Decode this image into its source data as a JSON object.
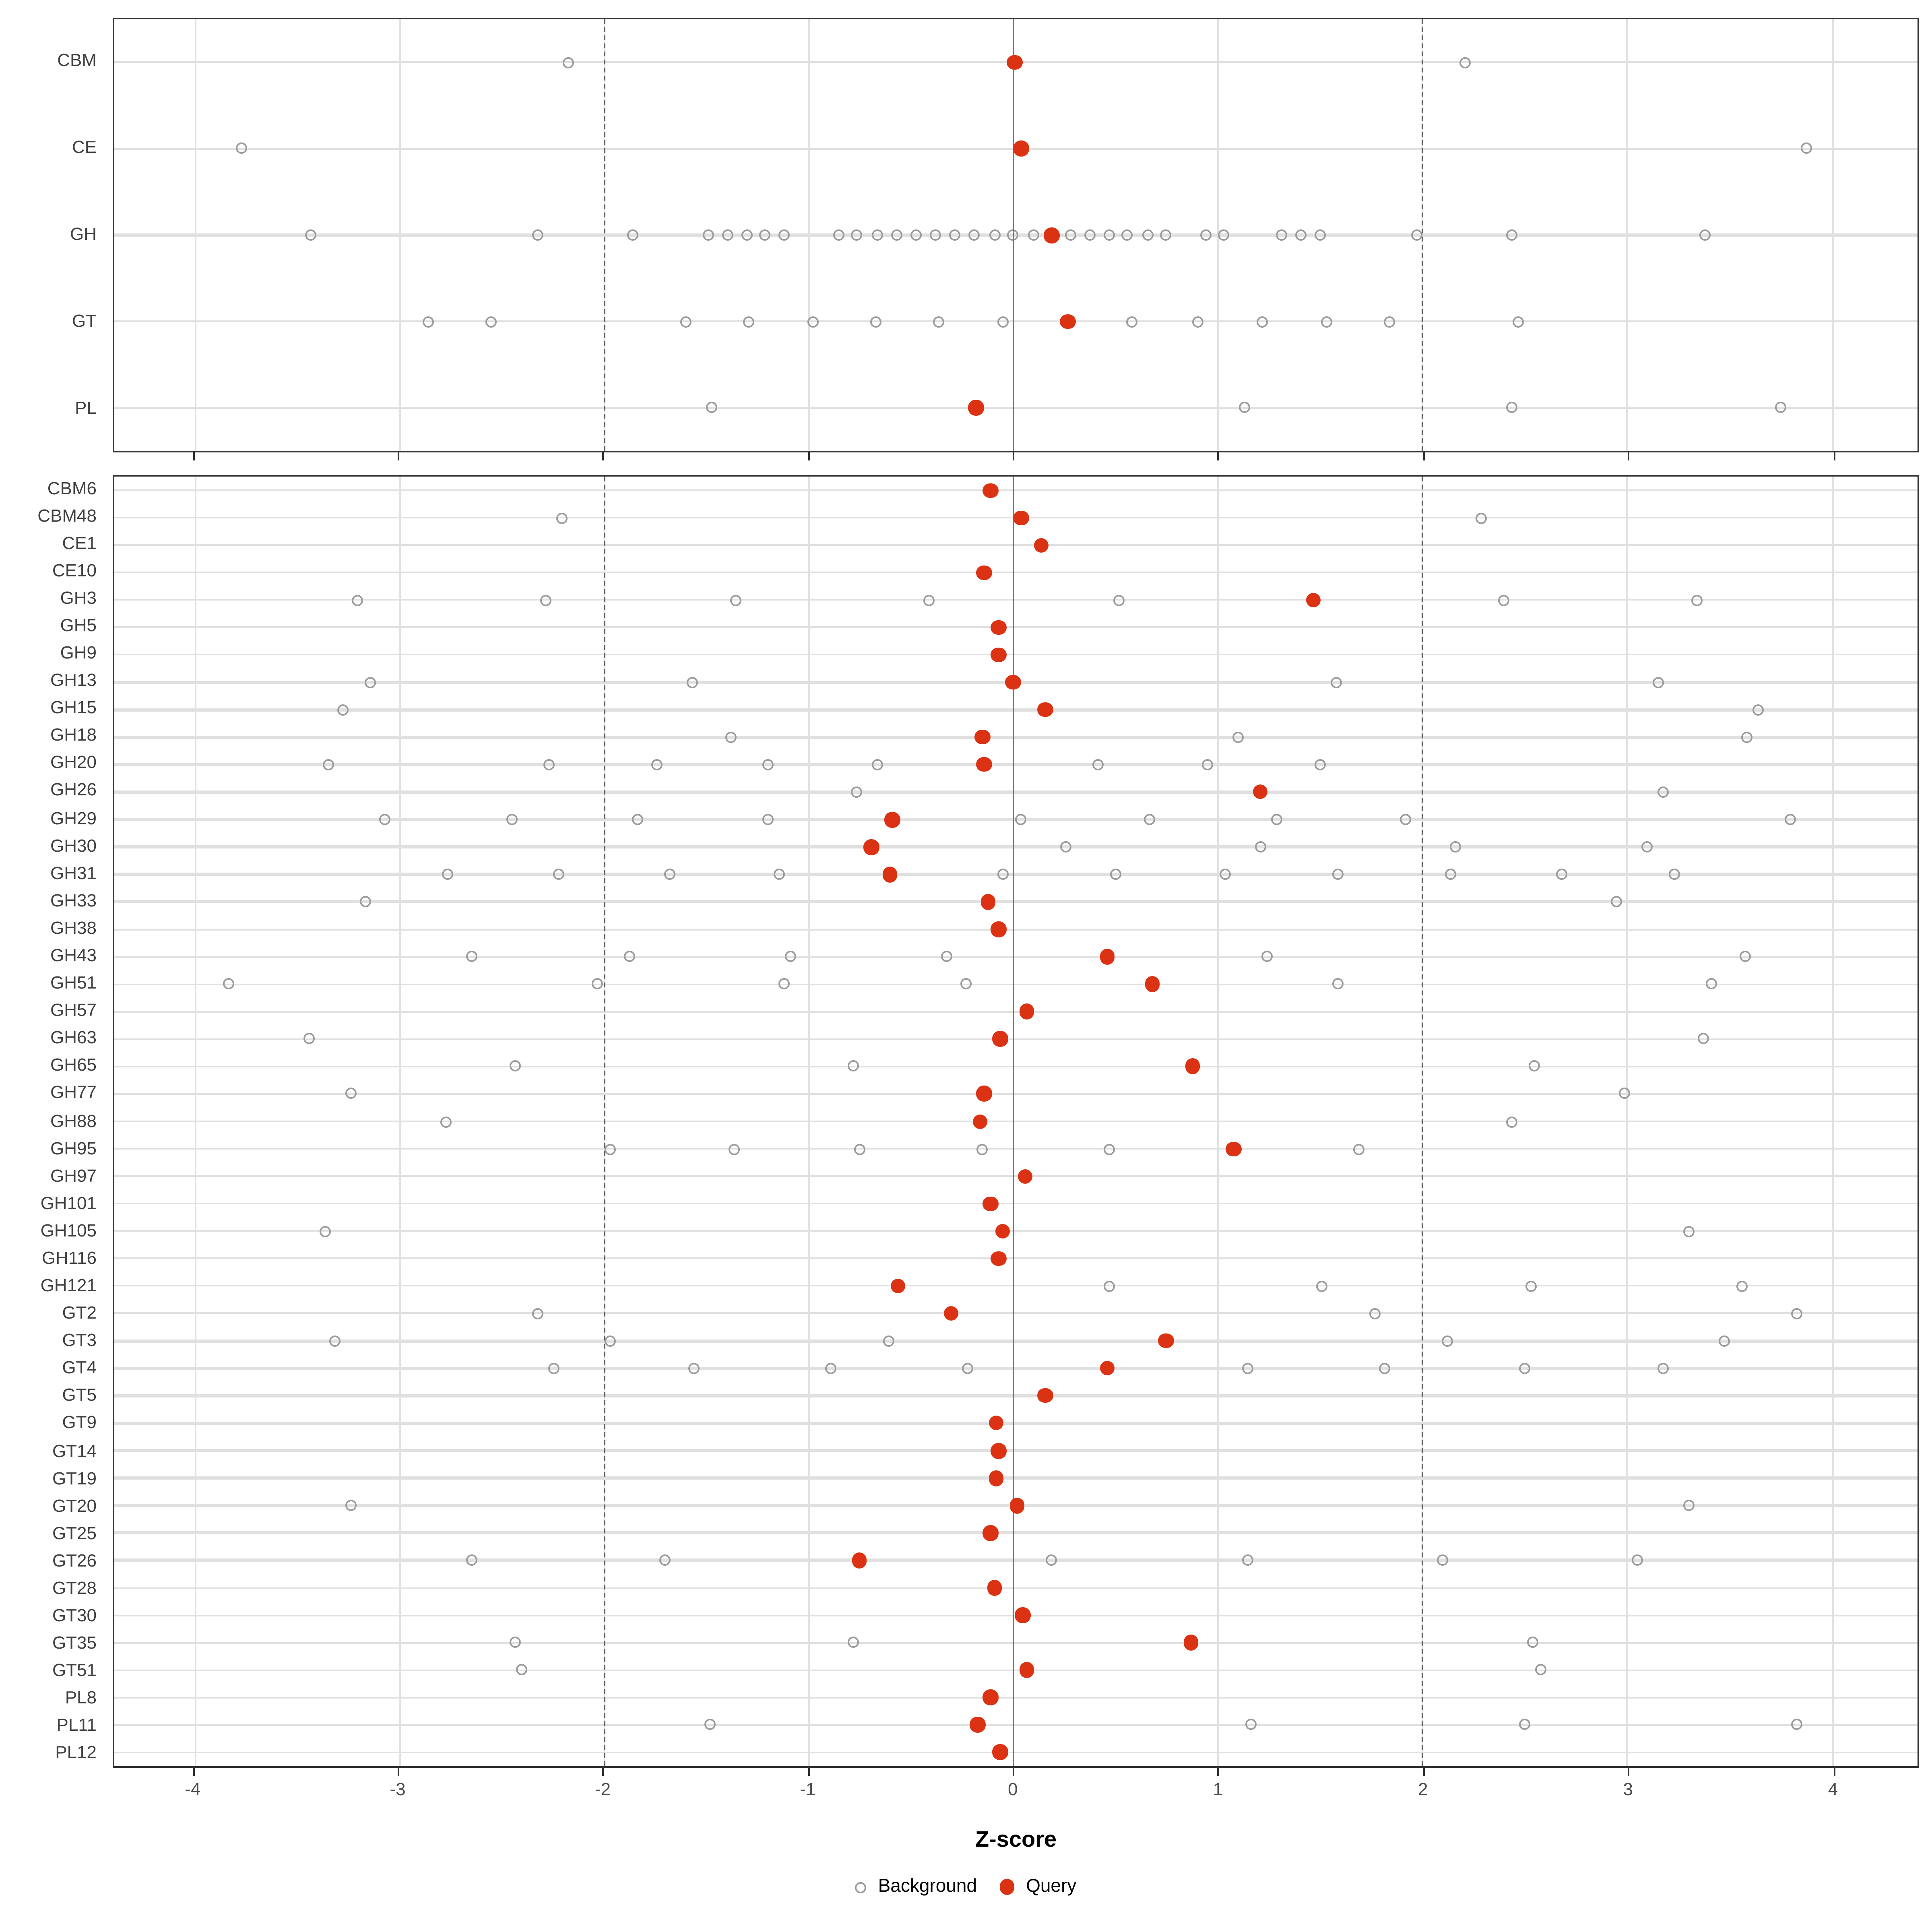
{
  "chart_data": {
    "type": "scatter",
    "title": "",
    "xlabel": "Z-score",
    "ylabel": "",
    "xlim": [
      -4.39,
      4.42
    ],
    "x_ticks": [
      -4,
      -3,
      -2,
      -1,
      0,
      1,
      2,
      3,
      4
    ],
    "reference_lines": {
      "zero": 0,
      "dashed": [
        -2,
        2
      ]
    },
    "grid": true,
    "legend_position": "bottom",
    "legend": [
      {
        "label": "Background",
        "marker": "open-circle"
      },
      {
        "label": "Query",
        "marker": "filled-circle"
      }
    ],
    "colors": {
      "query": "#db3213",
      "background_stroke": "#9b9b9b",
      "grid": "#e2e2e2",
      "dashed_line": "#5a5a5a",
      "zero_line": "#6e6e6e",
      "panel_border": "#333333",
      "axis_text": "#4d4d4d",
      "label_text": "#404040"
    },
    "panels": [
      {
        "id": "families",
        "rows": [
          {
            "label": "CBM",
            "background": [
              -2.17,
              2.21
            ],
            "query": 0.01
          },
          {
            "label": "CE",
            "background": [
              -3.77,
              3.88
            ],
            "query": 0.04
          },
          {
            "label": "GH",
            "background": [
              -3.43,
              -2.32,
              -1.86,
              -1.49,
              -1.39,
              -1.3,
              -1.21,
              -1.12,
              -0.85,
              -0.76,
              -0.66,
              -0.57,
              -0.47,
              -0.38,
              -0.28,
              -0.19,
              -0.09,
              0.0,
              0.1,
              0.28,
              0.38,
              0.47,
              0.56,
              0.66,
              0.75,
              0.94,
              1.03,
              1.31,
              1.41,
              1.5,
              1.97,
              2.44,
              3.38
            ],
            "query": 0.19
          },
          {
            "label": "GT",
            "background": [
              -2.86,
              -2.55,
              -1.6,
              -1.29,
              -0.98,
              -0.67,
              -0.36,
              -0.05,
              0.58,
              0.9,
              1.22,
              1.53,
              1.84,
              2.47
            ],
            "query": 0.27
          },
          {
            "label": "PL",
            "background": [
              -1.47,
              1.13,
              2.44,
              3.75
            ],
            "query": -0.18
          }
        ]
      },
      {
        "id": "subfamilies",
        "rows": [
          {
            "label": "CBM6",
            "background": [],
            "query": -0.11
          },
          {
            "label": "CBM48",
            "background": [
              -2.2,
              2.29
            ],
            "query": 0.04
          },
          {
            "label": "CE1",
            "background": [],
            "query": 0.14
          },
          {
            "label": "CE10",
            "background": [],
            "query": -0.14
          },
          {
            "label": "GH3",
            "background": [
              -3.2,
              -2.28,
              -1.35,
              -0.41,
              0.52,
              2.4,
              3.34
            ],
            "query": 1.47
          },
          {
            "label": "GH5",
            "background": [],
            "query": -0.07
          },
          {
            "label": "GH9",
            "background": [],
            "query": -0.07
          },
          {
            "label": "GH13",
            "background": [
              -3.14,
              -1.57,
              1.58,
              3.15
            ],
            "query": 0.0
          },
          {
            "label": "GH15",
            "background": [
              -3.27,
              3.64
            ],
            "query": 0.16
          },
          {
            "label": "GH18",
            "background": [
              -1.38,
              1.1,
              3.59
            ],
            "query": -0.15
          },
          {
            "label": "GH20",
            "background": [
              -3.34,
              -2.27,
              -1.74,
              -1.2,
              -0.66,
              0.42,
              0.95,
              1.5
            ],
            "query": -0.14
          },
          {
            "label": "GH26",
            "background": [
              -0.76,
              3.18
            ],
            "query": 1.21
          },
          {
            "label": "GH29",
            "background": [
              -3.07,
              -2.45,
              -1.83,
              -1.2,
              0.04,
              0.67,
              1.29,
              1.92,
              3.8
            ],
            "query": -0.59
          },
          {
            "label": "GH30",
            "background": [
              0.26,
              1.21,
              2.16,
              3.1
            ],
            "query": -0.69
          },
          {
            "label": "GH31",
            "background": [
              -2.76,
              -2.22,
              -1.68,
              -1.14,
              -0.05,
              0.5,
              1.04,
              1.59,
              2.14,
              2.68,
              3.23
            ],
            "query": -0.6
          },
          {
            "label": "GH33",
            "background": [
              -3.16,
              2.95
            ],
            "query": -0.12
          },
          {
            "label": "GH38",
            "background": [],
            "query": -0.07
          },
          {
            "label": "GH43",
            "background": [
              -2.64,
              -1.87,
              -1.09,
              -0.32,
              1.24,
              3.58
            ],
            "query": 0.46
          },
          {
            "label": "GH51",
            "background": [
              -3.83,
              -2.03,
              -1.12,
              -0.23,
              1.59,
              3.41
            ],
            "query": 0.68
          },
          {
            "label": "GH57",
            "background": [],
            "query": 0.07
          },
          {
            "label": "GH63",
            "background": [
              -3.44,
              3.37
            ],
            "query": -0.06
          },
          {
            "label": "GH65",
            "background": [
              -2.43,
              -0.78,
              2.55
            ],
            "query": 0.88
          },
          {
            "label": "GH77",
            "background": [
              -3.23,
              2.99
            ],
            "query": -0.14
          },
          {
            "label": "GH88",
            "background": [
              -2.77,
              2.44
            ],
            "query": -0.16
          },
          {
            "label": "GH95",
            "background": [
              -1.97,
              -1.36,
              -0.75,
              -0.15,
              0.47,
              1.69
            ],
            "query": 1.08
          },
          {
            "label": "GH97",
            "background": [],
            "query": 0.06
          },
          {
            "label": "GH101",
            "background": [],
            "query": -0.11
          },
          {
            "label": "GH105",
            "background": [
              -3.36,
              3.3
            ],
            "query": -0.05
          },
          {
            "label": "GH116",
            "background": [],
            "query": -0.07
          },
          {
            "label": "GH121",
            "background": [
              0.47,
              1.51,
              2.53,
              3.56
            ],
            "query": -0.56
          },
          {
            "label": "GT2",
            "background": [
              -2.32,
              1.77,
              3.83
            ],
            "query": -0.3
          },
          {
            "label": "GT3",
            "background": [
              -3.31,
              -1.97,
              -0.61,
              2.12,
              3.48
            ],
            "query": 0.75
          },
          {
            "label": "GT4",
            "background": [
              -2.24,
              -1.56,
              -0.89,
              -0.22,
              1.15,
              1.82,
              2.5,
              3.18
            ],
            "query": 0.46
          },
          {
            "label": "GT5",
            "background": [],
            "query": 0.16
          },
          {
            "label": "GT9",
            "background": [],
            "query": -0.08
          },
          {
            "label": "GT14",
            "background": [],
            "query": -0.07
          },
          {
            "label": "GT19",
            "background": [],
            "query": -0.08
          },
          {
            "label": "GT20",
            "background": [
              -3.23,
              3.3
            ],
            "query": 0.02
          },
          {
            "label": "GT25",
            "background": [],
            "query": -0.11
          },
          {
            "label": "GT26",
            "background": [
              -2.64,
              -1.7,
              0.19,
              1.15,
              2.1,
              3.05
            ],
            "query": -0.75
          },
          {
            "label": "GT28",
            "background": [],
            "query": -0.09
          },
          {
            "label": "GT30",
            "background": [],
            "query": 0.05
          },
          {
            "label": "GT35",
            "background": [
              -2.43,
              -0.78,
              2.54
            ],
            "query": 0.87
          },
          {
            "label": "GT51",
            "background": [
              -2.4,
              2.58
            ],
            "query": 0.07
          },
          {
            "label": "PL8",
            "background": [],
            "query": -0.11
          },
          {
            "label": "PL11",
            "background": [
              -1.48,
              1.16,
              2.5,
              3.83
            ],
            "query": -0.17
          },
          {
            "label": "PL12",
            "background": [],
            "query": -0.06
          }
        ]
      }
    ]
  }
}
